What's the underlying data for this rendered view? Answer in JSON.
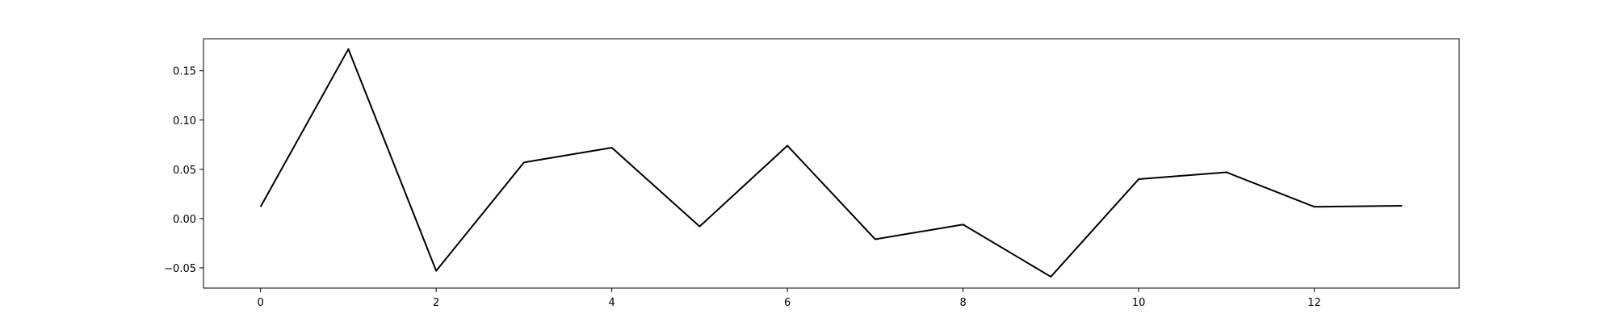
{
  "chart_data": {
    "type": "line",
    "title": "",
    "xlabel": "",
    "ylabel": "",
    "xlim": [
      -0.65,
      13.65
    ],
    "ylim": [
      -0.0705,
      0.1825
    ],
    "grid": false,
    "x_ticks": [
      0,
      2,
      4,
      6,
      8,
      10,
      12
    ],
    "x_tick_labels": [
      "0",
      "2",
      "4",
      "6",
      "8",
      "10",
      "12"
    ],
    "y_ticks": [
      -0.05,
      0.0,
      0.05,
      0.1,
      0.15
    ],
    "y_tick_labels": [
      "−0.05",
      "0.00",
      "0.05",
      "0.10",
      "0.15"
    ],
    "series": [
      {
        "color": "#000000",
        "x": [
          0,
          1,
          2,
          3,
          4,
          5,
          6,
          7,
          8,
          9,
          10,
          11,
          12,
          13
        ],
        "y": [
          0.012,
          0.172,
          -0.053,
          0.057,
          0.072,
          -0.008,
          0.074,
          -0.021,
          -0.006,
          -0.059,
          0.04,
          0.047,
          0.012,
          0.013
        ]
      }
    ]
  }
}
